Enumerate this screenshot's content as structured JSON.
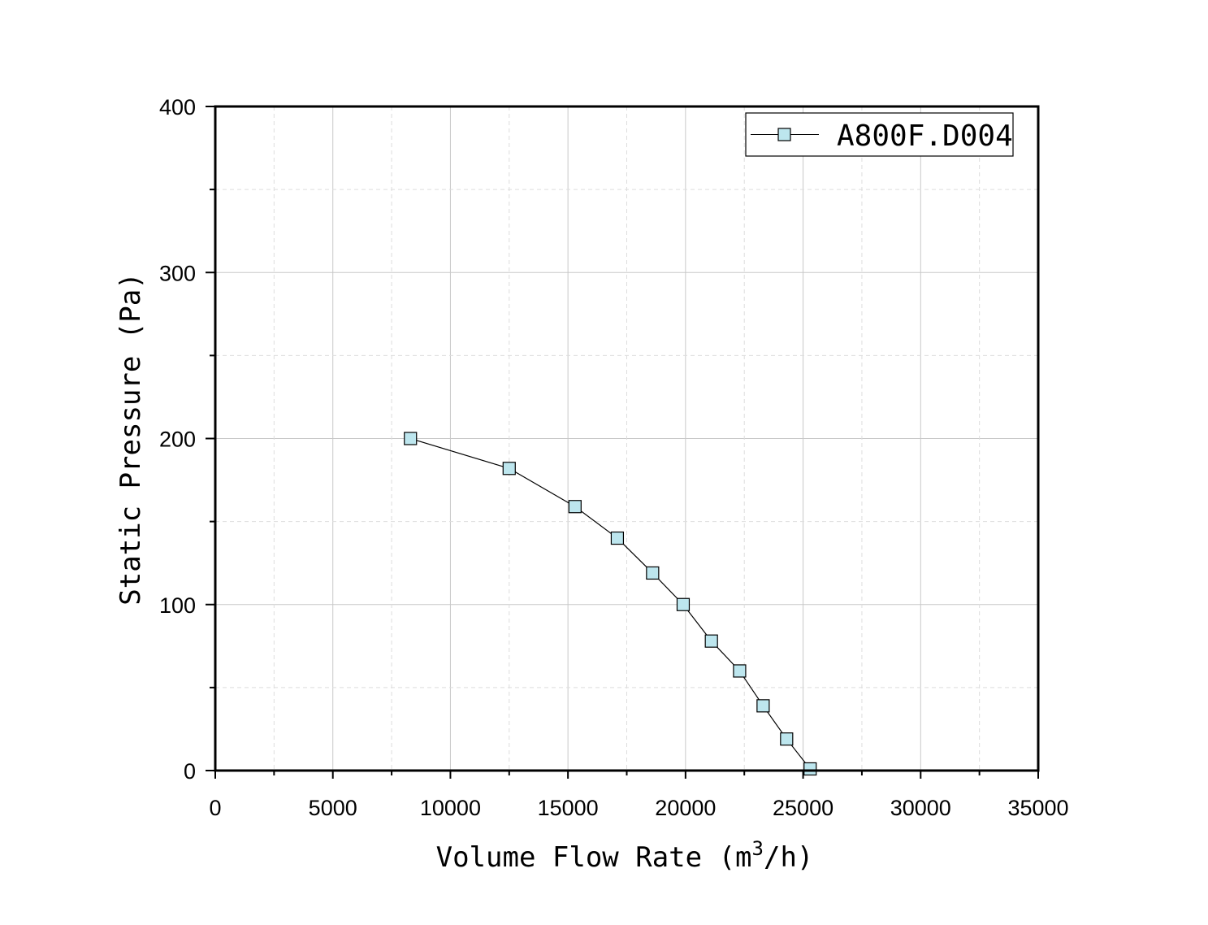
{
  "chart_data": {
    "type": "line",
    "title": "",
    "xlabel": "Volume Flow Rate (m3/h)",
    "xlabel_parts": {
      "main": "Volume Flow Rate (m",
      "sup": "3",
      "tail": "/h)"
    },
    "ylabel": "Static Pressure (Pa)",
    "xlim": [
      0,
      35000
    ],
    "ylim": [
      0,
      400
    ],
    "xticks": [
      0,
      5000,
      10000,
      15000,
      20000,
      25000,
      30000,
      35000
    ],
    "xtick_labels": [
      "0",
      "5000",
      "10000",
      "15000",
      "20000",
      "25000",
      "30000",
      "35000"
    ],
    "yticks": [
      0,
      100,
      200,
      300,
      400
    ],
    "ytick_labels": [
      "0",
      "100",
      "200",
      "300",
      "400"
    ],
    "grid": true,
    "legend_position": "top-right",
    "series": [
      {
        "name": "A800F.D004",
        "marker": "square",
        "marker_color": "#bde6ee",
        "line_color": "#000000",
        "x": [
          8300,
          12500,
          15300,
          17100,
          18600,
          19900,
          21100,
          22300,
          23300,
          24300,
          25300
        ],
        "y": [
          200,
          182,
          159,
          140,
          119,
          100,
          78,
          60,
          39,
          19,
          1
        ]
      }
    ]
  }
}
